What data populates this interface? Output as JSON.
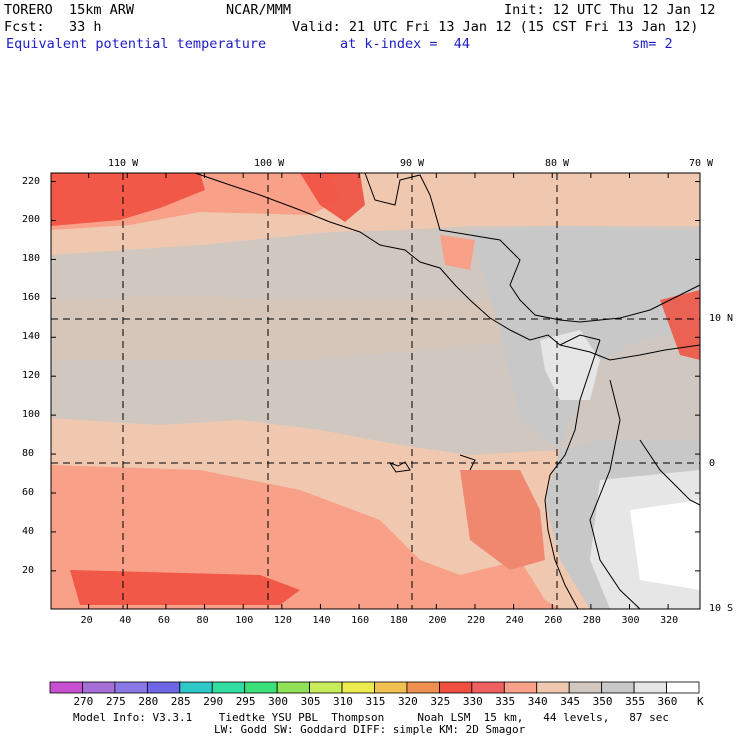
{
  "header": {
    "model": "TORERO  15km ARW",
    "center": "NCAR/MMM",
    "init": "Init: 12 UTC Thu 12 Jan 12",
    "fcst": "Fcst:   33 h",
    "valid": "Valid: 21 UTC Fri 13 Jan 12 (15 CST Fri 13 Jan 12)",
    "field": "Equivalent potential temperature",
    "level": "at k-index =  44",
    "smooth": "sm= 2"
  },
  "top_lon_labels": [
    "110 W",
    "100 W",
    "90 W",
    "80 W",
    "70 W"
  ],
  "right_lat_labels": [
    "10 N",
    "0",
    "10 S"
  ],
  "y_ticks": [
    "220",
    "200",
    "180",
    "160",
    "140",
    "120",
    "100",
    "80",
    "60",
    "40",
    "20"
  ],
  "x_ticks": [
    "20",
    "40",
    "60",
    "80",
    "100",
    "120",
    "140",
    "160",
    "180",
    "200",
    "220",
    "240",
    "260",
    "280",
    "300",
    "320"
  ],
  "colorbar": {
    "labels": [
      "270",
      "275",
      "280",
      "285",
      "290",
      "295",
      "300",
      "305",
      "310",
      "315",
      "320",
      "325",
      "330",
      "335",
      "340",
      "345",
      "350",
      "355",
      "360"
    ],
    "unit": "K",
    "colors": [
      "#c84fd0",
      "#a66fd8",
      "#8a78e6",
      "#6f66e6",
      "#2ec8c8",
      "#33dca0",
      "#3ce07a",
      "#90e058",
      "#c8ec5a",
      "#ecec50",
      "#f0c050",
      "#f09050",
      "#f05040",
      "#f06060",
      "#f8a088",
      "#f0c8b0",
      "#d0c8c0",
      "#c8c8c8",
      "#e6e6e6",
      "#ffffff"
    ]
  },
  "footer": {
    "line1": "Model Info: V3.3.1    Tiedtke YSU PBL  Thompson     Noah LSM  15 km,   44 levels,   87 sec",
    "line2": "LW: Godd SW: Goddard DIFF: simple KM: 2D Smagor"
  }
}
